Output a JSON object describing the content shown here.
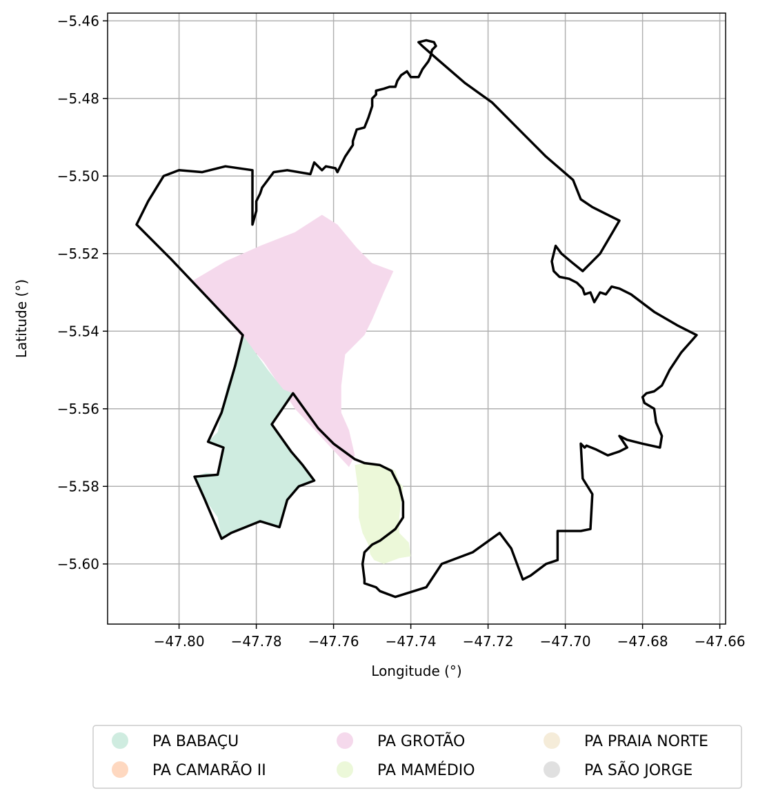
{
  "chart_data": {
    "type": "map",
    "xlabel": "Longitude (°)",
    "ylabel": "Latitude (°)",
    "xlim": [
      -47.8185,
      -47.6585
    ],
    "ylim": [
      -5.6155,
      -5.458
    ],
    "xticks": [
      -47.8,
      -47.78,
      -47.76,
      -47.74,
      -47.72,
      -47.7,
      -47.68,
      -47.66
    ],
    "xtick_labels": [
      "−47.80",
      "−47.78",
      "−47.76",
      "−47.74",
      "−47.72",
      "−47.70",
      "−47.68",
      "−47.66"
    ],
    "yticks": [
      -5.46,
      -5.48,
      -5.5,
      -5.52,
      -5.54,
      -5.56,
      -5.58,
      -5.6
    ],
    "ytick_labels": [
      "−5.46",
      "−5.48",
      "−5.50",
      "−5.52",
      "−5.54",
      "−5.56",
      "−5.58",
      "−5.60"
    ],
    "grid": true,
    "legend_position": "bottom",
    "legend": [
      {
        "label": "PA BABAÇU",
        "color": "#cfece0"
      },
      {
        "label": "PA CAMARÃO II",
        "color": "#fed8c0"
      },
      {
        "label": "PA GROTÃO",
        "color": "#f5d9ec"
      },
      {
        "label": "PA MAMÉDIO",
        "color": "#ecf8d9"
      },
      {
        "label": "PA PRAIA NORTE",
        "color": "#f5ecd9"
      },
      {
        "label": "PA SÃO JORGE",
        "color": "#e0e0e0"
      }
    ],
    "regions": [
      {
        "name": "PA GROTÃO",
        "color": "#f5d9ec",
        "coords": [
          [
            -47.7965,
            -5.527
          ],
          [
            -47.788,
            -5.522
          ],
          [
            -47.779,
            -5.518
          ],
          [
            -47.77,
            -5.5145
          ],
          [
            -47.763,
            -5.51
          ],
          [
            -47.759,
            -5.5125
          ],
          [
            -47.754,
            -5.5185
          ],
          [
            -47.75,
            -5.5225
          ],
          [
            -47.7445,
            -5.5245
          ],
          [
            -47.747,
            -5.53
          ],
          [
            -47.75,
            -5.537
          ],
          [
            -47.752,
            -5.541
          ],
          [
            -47.757,
            -5.546
          ],
          [
            -47.758,
            -5.554
          ],
          [
            -47.758,
            -5.561
          ],
          [
            -47.756,
            -5.5655
          ],
          [
            -47.7545,
            -5.572
          ],
          [
            -47.756,
            -5.575
          ],
          [
            -47.77,
            -5.56
          ],
          [
            -47.778,
            -5.548
          ]
        ]
      },
      {
        "name": "PA BABAÇU",
        "color": "#cfece0",
        "coords": [
          [
            -47.7835,
            -5.541
          ],
          [
            -47.777,
            -5.55
          ],
          [
            -47.773,
            -5.555
          ],
          [
            -47.7705,
            -5.556
          ],
          [
            -47.776,
            -5.564
          ],
          [
            -47.771,
            -5.571
          ],
          [
            -47.768,
            -5.5745
          ],
          [
            -47.765,
            -5.5785
          ],
          [
            -47.769,
            -5.58
          ],
          [
            -47.772,
            -5.5835
          ],
          [
            -47.774,
            -5.5905
          ],
          [
            -47.7765,
            -5.5895
          ],
          [
            -47.779,
            -5.589
          ],
          [
            -47.783,
            -5.591
          ],
          [
            -47.7865,
            -5.592
          ],
          [
            -47.789,
            -5.5935
          ],
          [
            -47.79,
            -5.588
          ],
          [
            -47.7935,
            -5.583
          ],
          [
            -47.796,
            -5.5775
          ],
          [
            -47.793,
            -5.5765
          ],
          [
            -47.79,
            -5.577
          ],
          [
            -47.7885,
            -5.57
          ],
          [
            -47.7925,
            -5.5685
          ],
          [
            -47.79,
            -5.566
          ],
          [
            -47.789,
            -5.561
          ],
          [
            -47.7875,
            -5.554
          ],
          [
            -47.7855,
            -5.549
          ]
        ]
      },
      {
        "name": "PA MAMÉDIO",
        "color": "#ecf8d9",
        "coords": [
          [
            -47.7545,
            -5.5745
          ],
          [
            -47.752,
            -5.574
          ],
          [
            -47.748,
            -5.5745
          ],
          [
            -47.746,
            -5.575
          ],
          [
            -47.744,
            -5.576
          ],
          [
            -47.743,
            -5.579
          ],
          [
            -47.742,
            -5.58
          ],
          [
            -47.7425,
            -5.584
          ],
          [
            -47.743,
            -5.588
          ],
          [
            -47.743,
            -5.592
          ],
          [
            -47.7405,
            -5.5945
          ],
          [
            -47.74,
            -5.598
          ],
          [
            -47.743,
            -5.5985
          ],
          [
            -47.747,
            -5.6
          ],
          [
            -47.7495,
            -5.599
          ],
          [
            -47.7505,
            -5.5975
          ],
          [
            -47.751,
            -5.595
          ],
          [
            -47.7525,
            -5.592
          ],
          [
            -47.7535,
            -5.588
          ],
          [
            -47.7535,
            -5.582
          ]
        ]
      }
    ],
    "outline": [
      [
        -47.781,
        -5.5125
      ],
      [
        -47.78,
        -5.509
      ],
      [
        -47.78,
        -5.5065
      ],
      [
        -47.779,
        -5.5045
      ],
      [
        -47.7785,
        -5.503
      ],
      [
        -47.7755,
        -5.499
      ],
      [
        -47.772,
        -5.4985
      ],
      [
        -47.766,
        -5.4995
      ],
      [
        -47.765,
        -5.4965
      ],
      [
        -47.763,
        -5.4985
      ],
      [
        -47.762,
        -5.4975
      ],
      [
        -47.7595,
        -5.498
      ],
      [
        -47.759,
        -5.499
      ],
      [
        -47.757,
        -5.495
      ],
      [
        -47.755,
        -5.492
      ],
      [
        -47.755,
        -5.491
      ],
      [
        -47.754,
        -5.488
      ],
      [
        -47.752,
        -5.4875
      ],
      [
        -47.751,
        -5.485
      ],
      [
        -47.75,
        -5.482
      ],
      [
        -47.75,
        -5.48
      ],
      [
        -47.749,
        -5.479
      ],
      [
        -47.749,
        -5.478
      ],
      [
        -47.747,
        -5.4775
      ],
      [
        -47.7455,
        -5.477
      ],
      [
        -47.744,
        -5.477
      ],
      [
        -47.7435,
        -5.4755
      ],
      [
        -47.7425,
        -5.474
      ],
      [
        -47.741,
        -5.473
      ],
      [
        -47.74,
        -5.4745
      ],
      [
        -47.738,
        -5.4745
      ],
      [
        -47.737,
        -5.4725
      ],
      [
        -47.7355,
        -5.4705
      ],
      [
        -47.735,
        -5.4695
      ],
      [
        -47.7345,
        -5.4675
      ],
      [
        -47.7335,
        -5.4665
      ],
      [
        -47.734,
        -5.4655
      ],
      [
        -47.736,
        -5.465
      ],
      [
        -47.738,
        -5.4655
      ],
      [
        -47.737,
        -5.4665
      ],
      [
        -47.733,
        -5.47
      ],
      [
        -47.726,
        -5.476
      ],
      [
        -47.719,
        -5.481
      ],
      [
        -47.712,
        -5.488
      ],
      [
        -47.705,
        -5.495
      ],
      [
        -47.698,
        -5.501
      ],
      [
        -47.696,
        -5.506
      ],
      [
        -47.693,
        -5.508
      ],
      [
        -47.686,
        -5.5115
      ],
      [
        -47.691,
        -5.52
      ],
      [
        -47.6955,
        -5.5245
      ],
      [
        -47.698,
        -5.5225
      ],
      [
        -47.701,
        -5.52
      ],
      [
        -47.7025,
        -5.518
      ],
      [
        -47.7035,
        -5.522
      ],
      [
        -47.703,
        -5.5245
      ],
      [
        -47.7015,
        -5.526
      ],
      [
        -47.699,
        -5.5265
      ],
      [
        -47.697,
        -5.5275
      ],
      [
        -47.6955,
        -5.529
      ],
      [
        -47.695,
        -5.5305
      ],
      [
        -47.6935,
        -5.53
      ],
      [
        -47.6925,
        -5.5325
      ],
      [
        -47.691,
        -5.53
      ],
      [
        -47.6895,
        -5.5305
      ],
      [
        -47.688,
        -5.5285
      ],
      [
        -47.686,
        -5.529
      ],
      [
        -47.683,
        -5.5305
      ],
      [
        -47.677,
        -5.535
      ],
      [
        -47.671,
        -5.5385
      ],
      [
        -47.666,
        -5.541
      ],
      [
        -47.67,
        -5.5455
      ],
      [
        -47.673,
        -5.55
      ],
      [
        -47.675,
        -5.554
      ],
      [
        -47.677,
        -5.5555
      ],
      [
        -47.679,
        -5.556
      ],
      [
        -47.68,
        -5.557
      ],
      [
        -47.6795,
        -5.5585
      ],
      [
        -47.677,
        -5.56
      ],
      [
        -47.6765,
        -5.5635
      ],
      [
        -47.675,
        -5.567
      ],
      [
        -47.6755,
        -5.57
      ],
      [
        -47.68,
        -5.569
      ],
      [
        -47.684,
        -5.568
      ],
      [
        -47.686,
        -5.567
      ],
      [
        -47.684,
        -5.57
      ],
      [
        -47.686,
        -5.571
      ],
      [
        -47.689,
        -5.572
      ],
      [
        -47.692,
        -5.5705
      ],
      [
        -47.6945,
        -5.5695
      ],
      [
        -47.695,
        -5.57
      ],
      [
        -47.696,
        -5.569
      ],
      [
        -47.6955,
        -5.578
      ],
      [
        -47.693,
        -5.582
      ],
      [
        -47.6935,
        -5.591
      ],
      [
        -47.696,
        -5.5915
      ],
      [
        -47.702,
        -5.5915
      ],
      [
        -47.702,
        -5.599
      ],
      [
        -47.705,
        -5.6
      ],
      [
        -47.709,
        -5.603
      ],
      [
        -47.711,
        -5.604
      ],
      [
        -47.714,
        -5.596
      ],
      [
        -47.717,
        -5.592
      ],
      [
        -47.724,
        -5.597
      ],
      [
        -47.732,
        -5.6
      ],
      [
        -47.736,
        -5.606
      ],
      [
        -47.744,
        -5.6085
      ],
      [
        -47.748,
        -5.607
      ],
      [
        -47.749,
        -5.606
      ],
      [
        -47.752,
        -5.605
      ],
      [
        -47.752,
        -5.604
      ],
      [
        -47.7525,
        -5.6
      ],
      [
        -47.752,
        -5.597
      ],
      [
        -47.75,
        -5.595
      ],
      [
        -47.748,
        -5.594
      ],
      [
        -47.744,
        -5.591
      ],
      [
        -47.742,
        -5.588
      ],
      [
        -47.742,
        -5.584
      ],
      [
        -47.743,
        -5.58
      ],
      [
        -47.745,
        -5.576
      ],
      [
        -47.748,
        -5.5745
      ],
      [
        -47.752,
        -5.574
      ],
      [
        -47.7545,
        -5.573
      ],
      [
        -47.76,
        -5.569
      ],
      [
        -47.764,
        -5.565
      ],
      [
        -47.7705,
        -5.556
      ],
      [
        -47.776,
        -5.564
      ],
      [
        -47.771,
        -5.571
      ],
      [
        -47.768,
        -5.5745
      ],
      [
        -47.765,
        -5.5785
      ],
      [
        -47.769,
        -5.58
      ],
      [
        -47.772,
        -5.5835
      ],
      [
        -47.774,
        -5.5905
      ],
      [
        -47.779,
        -5.589
      ],
      [
        -47.7865,
        -5.592
      ],
      [
        -47.789,
        -5.5935
      ],
      [
        -47.7935,
        -5.583
      ],
      [
        -47.796,
        -5.5775
      ],
      [
        -47.79,
        -5.577
      ],
      [
        -47.7885,
        -5.57
      ],
      [
        -47.7925,
        -5.5685
      ],
      [
        -47.789,
        -5.561
      ],
      [
        -47.7855,
        -5.549
      ],
      [
        -47.7835,
        -5.541
      ],
      [
        -47.792,
        -5.532
      ],
      [
        -47.802,
        -5.5215
      ],
      [
        -47.811,
        -5.5125
      ],
      [
        -47.808,
        -5.5065
      ],
      [
        -47.804,
        -5.5
      ],
      [
        -47.8,
        -5.4985
      ],
      [
        -47.794,
        -5.499
      ],
      [
        -47.788,
        -5.4975
      ],
      [
        -47.781,
        -5.4985
      ]
    ]
  }
}
